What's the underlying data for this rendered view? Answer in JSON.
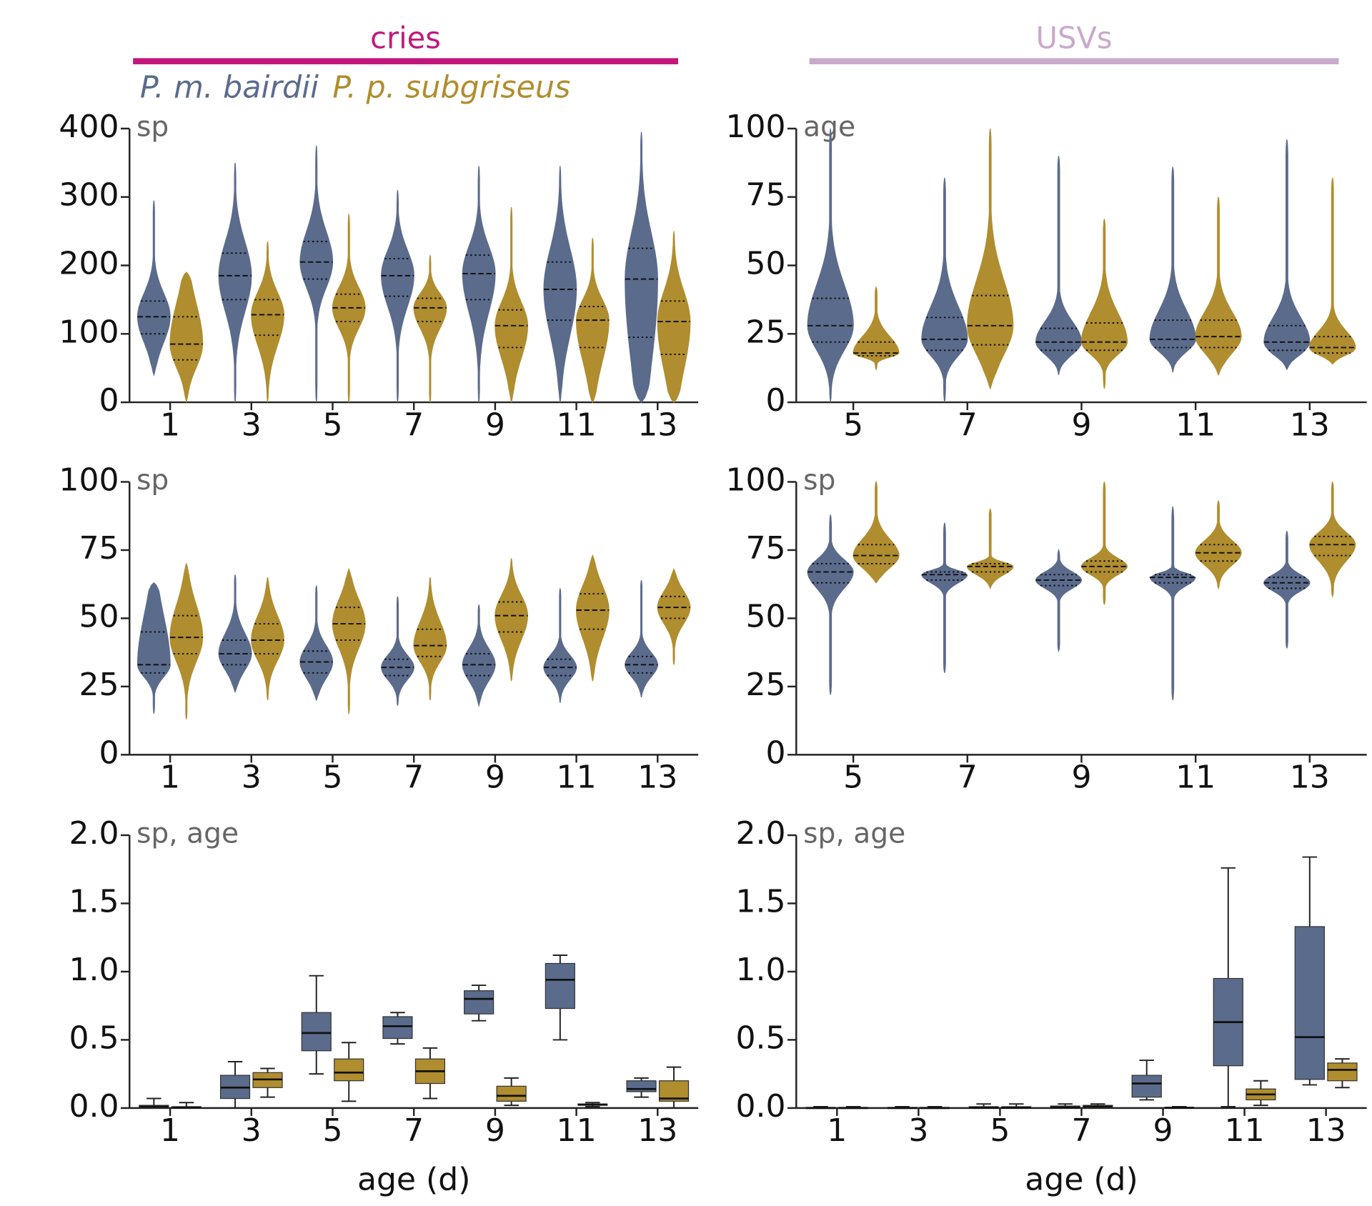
{
  "headers": [
    {
      "text": "cries",
      "color": "#c2187c"
    },
    {
      "text": "USVs",
      "color": "#c9a9cc"
    }
  ],
  "chart_data": [
    {
      "type": "violin",
      "annotation": "sp",
      "categories": [
        1,
        3,
        5,
        7,
        9,
        11,
        13
      ],
      "ylim": [
        0,
        400
      ],
      "yticks": [
        0,
        100,
        200,
        300,
        400
      ],
      "series": [
        {
          "name": "P. m. bairdii",
          "color": "#5b6b8c",
          "min": [
            40,
            0,
            0,
            0,
            0,
            0,
            0
          ],
          "q1": [
            100,
            150,
            180,
            155,
            150,
            120,
            95
          ],
          "median": [
            125,
            185,
            205,
            185,
            188,
            165,
            180
          ],
          "q3": [
            148,
            218,
            235,
            210,
            215,
            205,
            225
          ],
          "max": [
            295,
            350,
            375,
            310,
            345,
            345,
            395
          ]
        },
        {
          "name": "P. p. subgriseus",
          "color": "#b08d2e",
          "min": [
            0,
            0,
            0,
            0,
            0,
            0,
            0
          ],
          "q1": [
            62,
            98,
            118,
            118,
            80,
            80,
            70
          ],
          "median": [
            85,
            128,
            138,
            138,
            112,
            120,
            118
          ],
          "q3": [
            125,
            150,
            158,
            152,
            135,
            140,
            148
          ],
          "max": [
            190,
            235,
            275,
            215,
            285,
            240,
            250
          ]
        }
      ]
    },
    {
      "type": "violin",
      "annotation": "age",
      "categories": [
        5,
        7,
        9,
        11,
        13
      ],
      "ylim": [
        0,
        100
      ],
      "yticks": [
        0,
        25,
        50,
        75,
        100
      ],
      "series": [
        {
          "color": "#5b6b8c",
          "min": [
            0,
            0,
            10,
            11,
            12
          ],
          "q1": [
            22,
            19,
            19,
            20,
            19
          ],
          "median": [
            28,
            23,
            22,
            23,
            22
          ],
          "q3": [
            38,
            31,
            27,
            30,
            28
          ],
          "max": [
            100,
            82,
            90,
            86,
            96
          ]
        },
        {
          "color": "#b08d2e",
          "min": [
            12,
            5,
            5,
            10,
            14
          ],
          "q1": [
            17,
            21,
            19,
            20,
            18
          ],
          "median": [
            18,
            28,
            22,
            24,
            20
          ],
          "q3": [
            22,
            39,
            29,
            30,
            24
          ],
          "max": [
            42,
            100,
            67,
            75,
            82
          ]
        }
      ]
    },
    {
      "type": "violin",
      "annotation": "sp",
      "categories": [
        1,
        3,
        5,
        7,
        9,
        11,
        13
      ],
      "ylim": [
        0,
        100
      ],
      "yticks": [
        0,
        25,
        50,
        75,
        100
      ],
      "series": [
        {
          "color": "#5b6b8c",
          "min": [
            15,
            23,
            20,
            18,
            18,
            19,
            21
          ],
          "q1": [
            30,
            33,
            30,
            29,
            29,
            29,
            30
          ],
          "median": [
            33,
            37,
            34,
            32,
            33,
            32,
            33
          ],
          "q3": [
            45,
            42,
            38,
            35,
            37,
            35,
            36
          ],
          "max": [
            63,
            66,
            62,
            58,
            55,
            61,
            64
          ]
        },
        {
          "color": "#b08d2e",
          "min": [
            13,
            20,
            15,
            20,
            27,
            27,
            33
          ],
          "q1": [
            37,
            37,
            42,
            36,
            45,
            46,
            50
          ],
          "median": [
            43,
            42,
            48,
            40,
            51,
            53,
            54
          ],
          "q3": [
            51,
            48,
            54,
            46,
            56,
            59,
            58
          ],
          "max": [
            70,
            65,
            68,
            65,
            72,
            73,
            68
          ]
        }
      ]
    },
    {
      "type": "violin",
      "annotation": "sp",
      "categories": [
        5,
        7,
        9,
        11,
        13
      ],
      "ylim": [
        0,
        100
      ],
      "yticks": [
        0,
        25,
        50,
        75,
        100
      ],
      "series": [
        {
          "color": "#5b6b8c",
          "min": [
            22,
            30,
            38,
            20,
            39
          ],
          "q1": [
            63,
            64,
            62,
            63,
            61
          ],
          "median": [
            67,
            66,
            64,
            65,
            63
          ],
          "q3": [
            70,
            67,
            66,
            66,
            65
          ],
          "max": [
            88,
            85,
            75,
            91,
            82
          ]
        },
        {
          "color": "#b08d2e",
          "min": [
            63,
            61,
            55,
            61,
            58
          ],
          "q1": [
            70,
            67,
            67,
            71,
            73
          ],
          "median": [
            73,
            69,
            69,
            74,
            77
          ],
          "q3": [
            77,
            70,
            71,
            77,
            80
          ],
          "max": [
            100,
            90,
            100,
            93,
            100
          ]
        }
      ]
    },
    {
      "type": "box",
      "annotation": "sp, age",
      "x_label": "age (d)",
      "categories": [
        1,
        3,
        5,
        7,
        9,
        11,
        13
      ],
      "ylim": [
        0,
        2
      ],
      "yticks": [
        {
          "value": 0,
          "label": "0.0"
        },
        {
          "value": 0.5,
          "label": "0.5"
        },
        {
          "value": 1,
          "label": "1.0"
        },
        {
          "value": 1.5,
          "label": "1.5"
        },
        {
          "value": 2,
          "label": "2.0"
        }
      ],
      "series": [
        {
          "color": "#5b6b8c",
          "min": [
            0,
            0,
            0.25,
            0.47,
            0.64,
            0.5,
            0.08
          ],
          "q1": [
            0,
            0.07,
            0.42,
            0.51,
            0.69,
            0.73,
            0.12
          ],
          "median": [
            0.01,
            0.15,
            0.55,
            0.6,
            0.8,
            0.94,
            0.14
          ],
          "q3": [
            0.02,
            0.24,
            0.7,
            0.67,
            0.86,
            1.06,
            0.2
          ],
          "max": [
            0.07,
            0.34,
            0.97,
            0.7,
            0.9,
            1.12,
            0.22
          ]
        },
        {
          "color": "#b08d2e",
          "min": [
            0,
            0.08,
            0.05,
            0.07,
            0.02,
            0.01,
            0
          ],
          "q1": [
            0,
            0.15,
            0.2,
            0.18,
            0.05,
            0.02,
            0.05
          ],
          "median": [
            0.005,
            0.21,
            0.26,
            0.27,
            0.09,
            0.025,
            0.07
          ],
          "q3": [
            0.01,
            0.26,
            0.36,
            0.36,
            0.16,
            0.03,
            0.2
          ],
          "max": [
            0.04,
            0.29,
            0.48,
            0.44,
            0.22,
            0.04,
            0.3
          ]
        }
      ]
    },
    {
      "type": "box",
      "annotation": "sp, age",
      "x_label": "age (d)",
      "categories": [
        1,
        3,
        5,
        7,
        9,
        11,
        13
      ],
      "ylim": [
        0,
        2
      ],
      "yticks": [
        {
          "value": 0,
          "label": "0.0"
        },
        {
          "value": 0.5,
          "label": "0.5"
        },
        {
          "value": 1,
          "label": "1.0"
        },
        {
          "value": 1.5,
          "label": "1.5"
        },
        {
          "value": 2,
          "label": "2.0"
        }
      ],
      "series": [
        {
          "color": "#5b6b8c",
          "min": [
            0,
            0,
            0,
            0,
            0.06,
            0.01,
            0.17
          ],
          "q1": [
            0,
            0,
            0,
            0,
            0.08,
            0.31,
            0.21
          ],
          "median": [
            0,
            0,
            0.003,
            0.005,
            0.18,
            0.63,
            0.52
          ],
          "q3": [
            0.005,
            0.005,
            0.01,
            0.015,
            0.24,
            0.95,
            1.33
          ],
          "max": [
            0.01,
            0.01,
            0.03,
            0.03,
            0.35,
            1.76,
            1.84
          ]
        },
        {
          "color": "#b08d2e",
          "min": [
            0,
            0,
            0,
            0,
            0,
            0.02,
            0.15
          ],
          "q1": [
            0,
            0,
            0,
            0,
            0,
            0.06,
            0.2
          ],
          "median": [
            0,
            0,
            0.003,
            0.01,
            0.002,
            0.1,
            0.28
          ],
          "q3": [
            0.005,
            0.005,
            0.01,
            0.02,
            0.005,
            0.14,
            0.33
          ],
          "max": [
            0.01,
            0.01,
            0.03,
            0.03,
            0.01,
            0.2,
            0.36
          ]
        }
      ]
    }
  ]
}
